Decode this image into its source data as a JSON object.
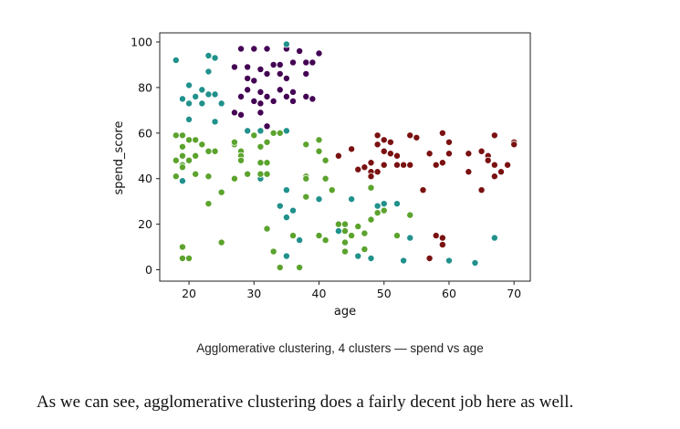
{
  "chart_data": {
    "type": "scatter",
    "title": "",
    "xlabel": "age",
    "ylabel": "spend_score",
    "xlim": [
      15.5,
      72.5
    ],
    "ylim": [
      -5,
      104
    ],
    "xticks": [
      20,
      30,
      40,
      50,
      60,
      70
    ],
    "yticks": [
      0,
      20,
      40,
      60,
      80,
      100
    ],
    "grid": false,
    "legend": "none",
    "series": [
      {
        "color": "#440154",
        "points": [
          [
            28,
            97
          ],
          [
            30,
            97
          ],
          [
            32,
            97
          ],
          [
            35,
            97
          ],
          [
            37,
            96
          ],
          [
            40,
            95
          ],
          [
            27,
            89
          ],
          [
            29,
            89
          ],
          [
            31,
            88
          ],
          [
            33,
            90
          ],
          [
            34,
            90
          ],
          [
            36,
            91
          ],
          [
            38,
            91
          ],
          [
            39,
            91
          ],
          [
            29,
            84
          ],
          [
            30,
            83
          ],
          [
            32,
            86
          ],
          [
            34,
            86
          ],
          [
            35,
            84
          ],
          [
            38,
            86
          ],
          [
            28,
            76
          ],
          [
            29,
            79
          ],
          [
            31,
            78
          ],
          [
            32,
            76
          ],
          [
            34,
            79
          ],
          [
            35,
            76
          ],
          [
            36,
            78
          ],
          [
            38,
            76
          ],
          [
            39,
            75
          ],
          [
            30,
            74
          ],
          [
            31,
            73
          ],
          [
            33,
            74
          ],
          [
            36,
            74
          ],
          [
            27,
            69
          ],
          [
            28,
            68
          ],
          [
            31,
            69
          ],
          [
            32,
            63
          ],
          [
            33,
            60
          ]
        ]
      },
      {
        "color": "#21918c",
        "points": [
          [
            18,
            92
          ],
          [
            23,
            94
          ],
          [
            24,
            93
          ],
          [
            35,
            99
          ],
          [
            23,
            87
          ],
          [
            20,
            81
          ],
          [
            21,
            76
          ],
          [
            22,
            79
          ],
          [
            23,
            77
          ],
          [
            24,
            77
          ],
          [
            19,
            75
          ],
          [
            20,
            73
          ],
          [
            22,
            73
          ],
          [
            25,
            73
          ],
          [
            24,
            65
          ],
          [
            20,
            66
          ],
          [
            29,
            61
          ],
          [
            31,
            61
          ],
          [
            35,
            61
          ],
          [
            19,
            39
          ],
          [
            31,
            40
          ],
          [
            35,
            35
          ],
          [
            36,
            26
          ],
          [
            35,
            23
          ],
          [
            40,
            31
          ],
          [
            43,
            17
          ],
          [
            45,
            31
          ],
          [
            46,
            6
          ],
          [
            48,
            5
          ],
          [
            49,
            28
          ],
          [
            50,
            29
          ],
          [
            52,
            29
          ],
          [
            53,
            4
          ],
          [
            54,
            14
          ],
          [
            60,
            4
          ],
          [
            64,
            3
          ],
          [
            67,
            14
          ],
          [
            35,
            6
          ],
          [
            37,
            13
          ],
          [
            34,
            28
          ]
        ]
      },
      {
        "color": "#5ba32d",
        "points": [
          [
            18,
            59
          ],
          [
            19,
            59
          ],
          [
            19,
            54
          ],
          [
            20,
            57
          ],
          [
            21,
            57
          ],
          [
            22,
            55
          ],
          [
            23,
            52
          ],
          [
            24,
            52
          ],
          [
            21,
            50
          ],
          [
            19,
            50
          ],
          [
            20,
            48
          ],
          [
            19,
            46
          ],
          [
            18,
            48
          ],
          [
            18,
            41
          ],
          [
            19,
            45
          ],
          [
            21,
            42
          ],
          [
            23,
            41
          ],
          [
            27,
            55
          ],
          [
            27,
            56
          ],
          [
            28,
            52
          ],
          [
            28,
            50
          ],
          [
            28,
            48
          ],
          [
            30,
            59
          ],
          [
            31,
            54
          ],
          [
            32,
            56
          ],
          [
            33,
            60
          ],
          [
            34,
            60
          ],
          [
            31,
            47
          ],
          [
            32,
            47
          ],
          [
            31,
            42
          ],
          [
            29,
            42
          ],
          [
            27,
            40
          ],
          [
            32,
            42
          ],
          [
            38,
            55
          ],
          [
            40,
            57
          ],
          [
            40,
            52
          ],
          [
            41,
            48
          ],
          [
            41,
            40
          ],
          [
            38,
            41
          ],
          [
            38,
            40
          ],
          [
            42,
            35
          ],
          [
            43,
            20
          ],
          [
            44,
            17
          ],
          [
            44,
            20
          ],
          [
            46,
            19
          ],
          [
            48,
            22
          ],
          [
            49,
            25
          ],
          [
            50,
            26
          ],
          [
            52,
            15
          ],
          [
            54,
            24
          ],
          [
            48,
            36
          ],
          [
            47,
            16
          ],
          [
            45,
            15
          ],
          [
            44,
            8
          ],
          [
            47,
            9
          ],
          [
            25,
            34
          ],
          [
            23,
            29
          ],
          [
            25,
            12
          ],
          [
            19,
            5
          ],
          [
            20,
            5
          ],
          [
            19,
            10
          ],
          [
            32,
            18
          ],
          [
            33,
            8
          ],
          [
            34,
            1
          ],
          [
            37,
            1
          ],
          [
            36,
            15
          ],
          [
            38,
            32
          ],
          [
            40,
            15
          ],
          [
            41,
            13
          ],
          [
            44,
            12
          ]
        ]
      },
      {
        "color": "#7a1111",
        "points": [
          [
            43,
            50
          ],
          [
            45,
            53
          ],
          [
            46,
            44
          ],
          [
            47,
            45
          ],
          [
            48,
            47
          ],
          [
            48,
            43
          ],
          [
            48,
            41
          ],
          [
            49,
            59
          ],
          [
            49,
            55
          ],
          [
            50,
            57
          ],
          [
            50,
            52
          ],
          [
            51,
            56
          ],
          [
            51,
            51
          ],
          [
            49,
            43
          ],
          [
            50,
            46
          ],
          [
            52,
            46
          ],
          [
            53,
            46
          ],
          [
            54,
            59
          ],
          [
            55,
            58
          ],
          [
            54,
            46
          ],
          [
            56,
            35
          ],
          [
            57,
            51
          ],
          [
            58,
            46
          ],
          [
            59,
            60
          ],
          [
            59,
            47
          ],
          [
            60,
            56
          ],
          [
            60,
            51
          ],
          [
            63,
            51
          ],
          [
            63,
            43
          ],
          [
            65,
            52
          ],
          [
            65,
            35
          ],
          [
            66,
            50
          ],
          [
            67,
            59
          ],
          [
            66,
            48
          ],
          [
            67,
            46
          ],
          [
            67,
            41
          ],
          [
            68,
            43
          ],
          [
            69,
            46
          ],
          [
            70,
            56
          ],
          [
            70,
            55
          ],
          [
            58,
            15
          ],
          [
            59,
            14
          ],
          [
            59,
            11
          ],
          [
            57,
            5
          ],
          [
            52,
            50
          ]
        ]
      }
    ]
  },
  "caption": "Agglomerative clustering, 4 clusters — spend vs age",
  "body_text": "As we can see, agglomerative clustering does a fairly decent job here as well."
}
